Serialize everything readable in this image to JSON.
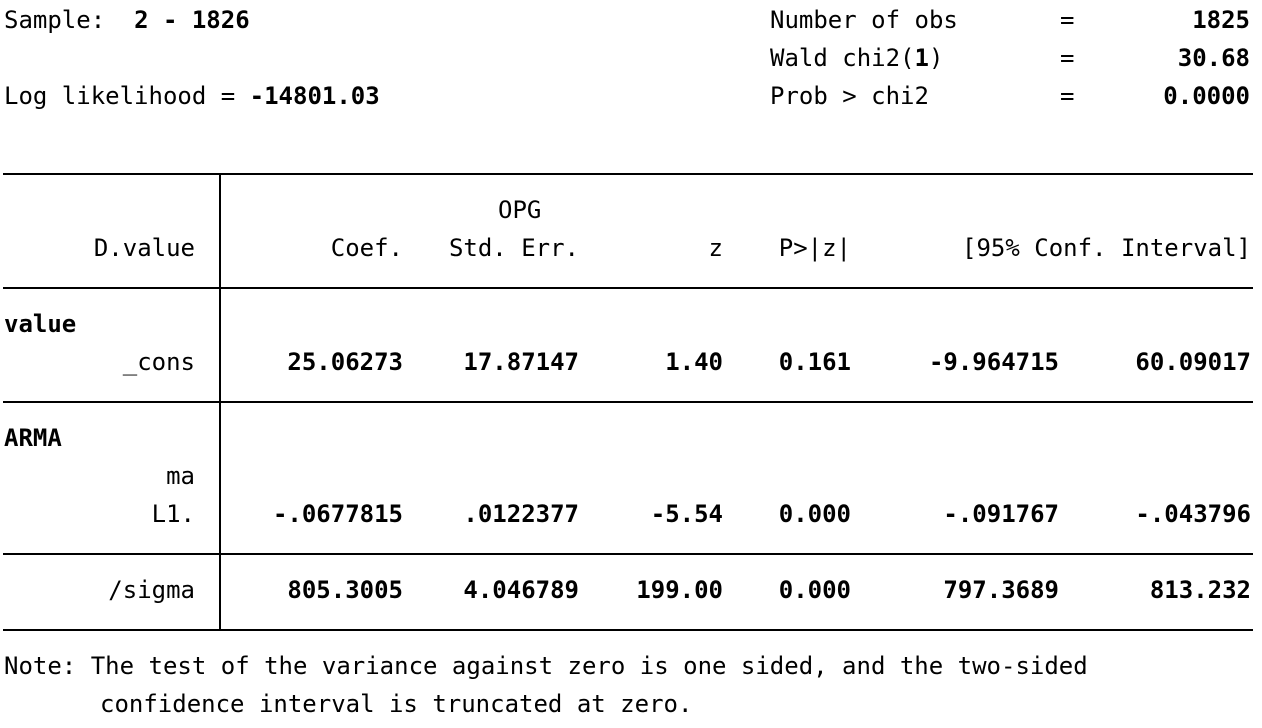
{
  "header": {
    "sample_label": "Sample:",
    "sample_value": "2 - 1826",
    "loglik_label": "Log likelihood = ",
    "loglik_value": "-14801.03",
    "stats": [
      {
        "label": "Number of obs",
        "label_bold_part": "",
        "label_tail": "",
        "eq": "=",
        "value": "1825"
      },
      {
        "label": "Wald chi2(",
        "label_bold_part": "1",
        "label_tail": ")",
        "eq": "=",
        "value": "30.68"
      },
      {
        "label": "Prob > chi2",
        "label_bold_part": "",
        "label_tail": "",
        "eq": "=",
        "value": "0.0000"
      }
    ]
  },
  "table": {
    "depvar": "D.value",
    "headers": {
      "opg": "OPG",
      "coef": "Coef.",
      "se": "Std. Err.",
      "z": "z",
      "p": "P>|z|",
      "ci": "[95% Conf. Interval]"
    },
    "sections": [
      {
        "equation": "value",
        "rows": [
          {
            "label": "_cons",
            "coef": "25.06273",
            "se": "17.87147",
            "z": "1.40",
            "p": "0.161",
            "lo": "-9.964715",
            "hi": "60.09017"
          }
        ]
      },
      {
        "equation": "ARMA",
        "sublabel": "ma",
        "rows": [
          {
            "label": "L1.",
            "coef": "-.0677815",
            "se": ".0122377",
            "z": "-5.54",
            "p": "0.000",
            "lo": "-.091767",
            "hi": "-.043796"
          }
        ]
      },
      {
        "equation": "",
        "rows": [
          {
            "label": "/sigma",
            "coef": "805.3005",
            "se": "4.046789",
            "z": "199.00",
            "p": "0.000",
            "lo": "797.3689",
            "hi": "813.232"
          }
        ]
      }
    ]
  },
  "note": {
    "line1": "Note: The test of the variance against zero is one sided, and the two-sided",
    "line2": "confidence interval is truncated at zero."
  }
}
